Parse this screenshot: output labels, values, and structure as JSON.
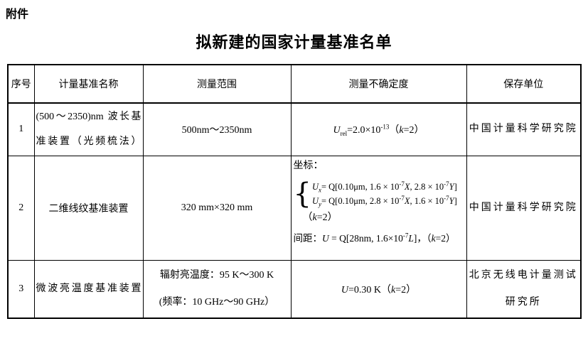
{
  "colors": {
    "background": "#ffffff",
    "text": "#000000",
    "border": "#000000"
  },
  "page": {
    "attachment_label": "附件",
    "title": "拟新建的国家计量基准名单"
  },
  "table": {
    "headers": [
      "序号",
      "计量基准名称",
      "测量范围",
      "测量不确定度",
      "保存单位"
    ],
    "rows": [
      {
        "no": "1",
        "name": "(500～2350)nm 波长基准装置（光频梳法）",
        "range": "500nm～2350nm",
        "uncertainty_html": "<i>U</i><sub>rel</sub>=2.0×10<sup>-13</sup>（<i>k</i>=2）",
        "custodian": "中国计量科学研究院"
      },
      {
        "no": "2",
        "name": "二维线纹基准装置",
        "range": "320 mm×320 mm",
        "uncertainty": {
          "coord_label": "坐标：",
          "brace": "{",
          "eq1_html": "<i>U</i><sub><i>x</i></sub>= Q[0.10μm, 1.6 × 10<sup>-7</sup><i>X</i>, 2.8 × 10<sup>-7</sup><i>Y</i>]",
          "eq2_html": "<i>U</i><sub><i>y</i></sub>= Q[0.10μm, 2.8 × 10<sup>-7</sup><i>X</i>, 1.6 × 10<sup>-7</sup><i>Y</i>]",
          "k_html": "（<i>k</i>=2）",
          "spacing_html": "间距：<i>U</i> = Q[28nm, 1.6×10<sup>-7</sup><i>L</i>]，（<i>k</i>=2）"
        },
        "custodian": "中国计量科学研究院"
      },
      {
        "no": "3",
        "name": "微波亮温度基准装置",
        "range_line1": "辐射亮温度：95 K～300 K",
        "range_line2": "(频率：10 GHz～90 GHz）",
        "uncertainty_html": "<i>U</i>=0.30 K（<i>k</i>=2）",
        "custodian_line1": "北京无线电计量测试",
        "custodian_line2": "研究所"
      }
    ]
  }
}
